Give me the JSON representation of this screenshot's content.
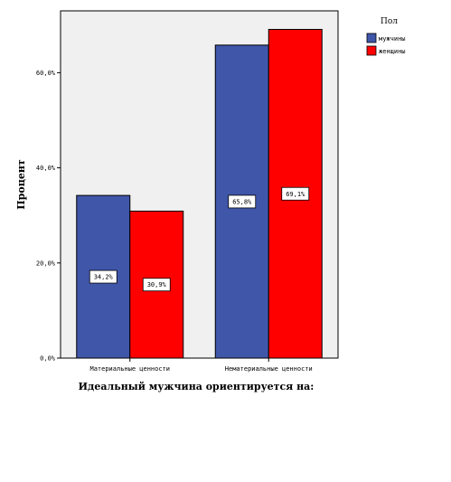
{
  "chart_data": {
    "type": "bar",
    "categories": [
      "Материальные ценности",
      "Нематериальные ценности"
    ],
    "series": [
      {
        "name": "мужчины",
        "color": "#3f56a9",
        "values": [
          34.2,
          65.8
        ],
        "labels": [
          "34,2%",
          "65,8%"
        ]
      },
      {
        "name": "женщины",
        "color": "#ff0000",
        "values": [
          30.9,
          69.1
        ],
        "labels": [
          "30,9%",
          "69,1%"
        ]
      }
    ],
    "xlabel": "Идеальный мужчина ориентируется на:",
    "ylabel": "Процент",
    "ylim": [
      0,
      73
    ],
    "yticks": [
      0,
      20,
      40,
      60
    ],
    "ytick_labels": [
      "0,0%",
      "20,0%",
      "40,0%",
      "60,0%"
    ],
    "legend_title": "Пол",
    "legend_position": "top-right",
    "plot_background": "#f0f0f0",
    "grid": false
  }
}
